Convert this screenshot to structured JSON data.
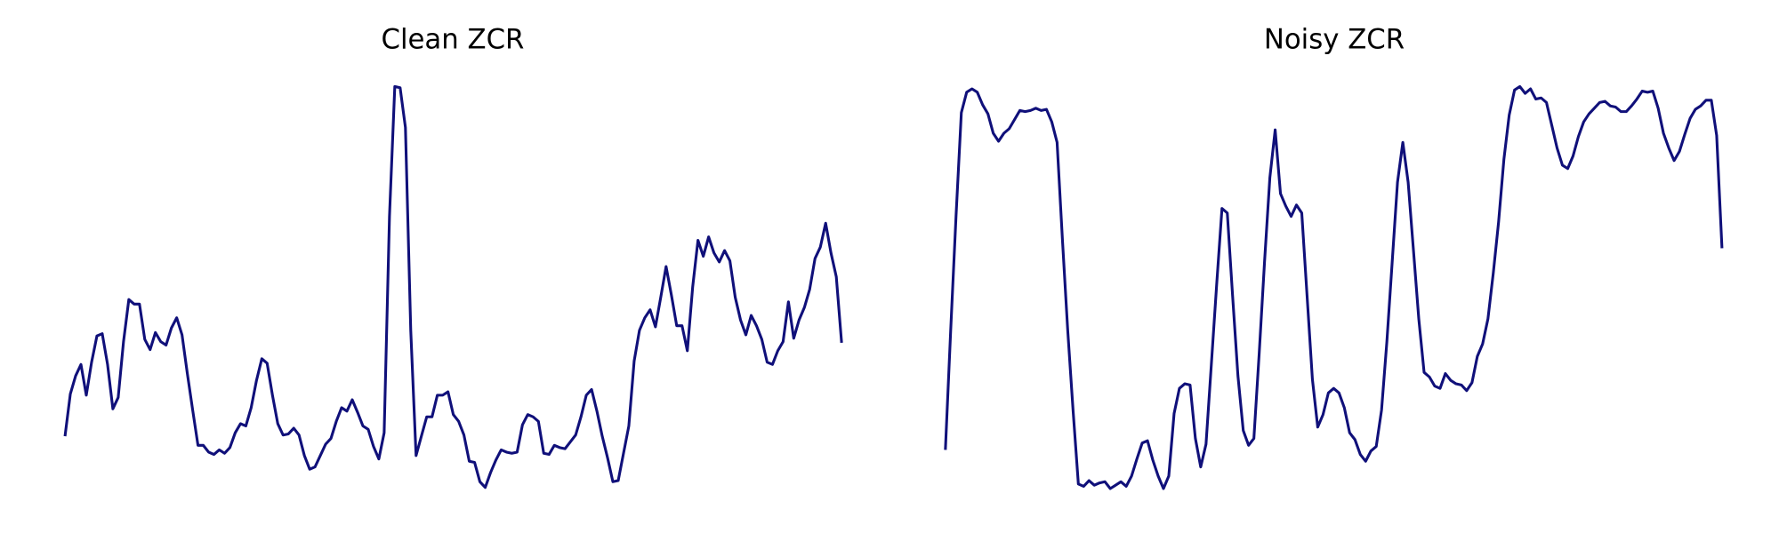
{
  "chart_data": [
    {
      "type": "line",
      "title": "Clean ZCR",
      "color": "#10107a",
      "ylim": [
        0,
        370
      ],
      "values": [
        57,
        94,
        110,
        120,
        93,
        122,
        145,
        147,
        120,
        81,
        91,
        140,
        177,
        173,
        173,
        142,
        133,
        148,
        140,
        137,
        152,
        161,
        146,
        112,
        80,
        49,
        49,
        43,
        41,
        45,
        42,
        47,
        60,
        68,
        66,
        82,
        106,
        125,
        121,
        93,
        68,
        58,
        59,
        64,
        58,
        40,
        28,
        30,
        40,
        50,
        55,
        70,
        82,
        79,
        89,
        78,
        66,
        63,
        48,
        37,
        60,
        250,
        364,
        363,
        328,
        150,
        40,
        57,
        74,
        74,
        93,
        93,
        96,
        76,
        70,
        58,
        35,
        34,
        17,
        12,
        25,
        36,
        45,
        43,
        42,
        43,
        67,
        76,
        74,
        70,
        42,
        41,
        49,
        47,
        46,
        52,
        58,
        74,
        93,
        98,
        79,
        57,
        38,
        17,
        18,
        42,
        66,
        123,
        150,
        161,
        168,
        153,
        179,
        206,
        181,
        154,
        154,
        132,
        188,
        229,
        215,
        232,
        218,
        210,
        220,
        211,
        179,
        159,
        146,
        163,
        154,
        142,
        122,
        120,
        132,
        140,
        175,
        143,
        159,
        170,
        186,
        213,
        223,
        244,
        218,
        197,
        139
      ]
    },
    {
      "type": "line",
      "title": "Noisy ZCR",
      "color": "#10107a",
      "ylim": [
        0,
        370
      ],
      "values": [
        45,
        150,
        250,
        341,
        359,
        362,
        359,
        348,
        340,
        323,
        316,
        323,
        327,
        335,
        343,
        342,
        343,
        345,
        343,
        344,
        333,
        315,
        230,
        150,
        80,
        15,
        13,
        18,
        14,
        16,
        17,
        11,
        14,
        17,
        13,
        22,
        37,
        51,
        53,
        36,
        22,
        11,
        22,
        77,
        99,
        103,
        102,
        55,
        30,
        50,
        120,
        190,
        257,
        253,
        180,
        110,
        62,
        49,
        55,
        130,
        210,
        284,
        326,
        270,
        259,
        250,
        260,
        253,
        180,
        107,
        65,
        76,
        95,
        99,
        95,
        82,
        60,
        54,
        41,
        35,
        44,
        48,
        80,
        140,
        210,
        280,
        315,
        280,
        220,
        160,
        113,
        109,
        101,
        99,
        112,
        106,
        103,
        102,
        97,
        104,
        127,
        138,
        160,
        200,
        245,
        300,
        339,
        361,
        364,
        358,
        362,
        353,
        354,
        350,
        330,
        310,
        295,
        292,
        303,
        320,
        333,
        340,
        345,
        350,
        351,
        347,
        346,
        342,
        342,
        347,
        353,
        360,
        359,
        360,
        345,
        323,
        310,
        299,
        307,
        322,
        336,
        344,
        347,
        352,
        352,
        321,
        222
      ]
    }
  ]
}
